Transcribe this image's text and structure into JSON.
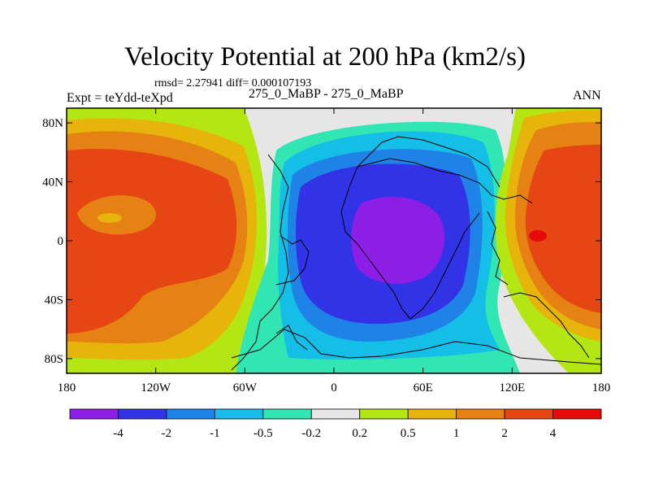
{
  "chart_data": {
    "type": "heatmap",
    "title": "Velocity Potential at 200 hPa (km2/s)",
    "stats": "rmsd= 2.27941 diff= 0.000107193",
    "left_label": "Expt = teYdd-teXpd",
    "center_label": "275_0_MaBP - 275_0_MaBP",
    "right_label": "ANN",
    "xlim": [
      -180,
      180
    ],
    "ylim": [
      -90,
      90
    ],
    "x_ticks": [
      {
        "value": -180,
        "label": "180"
      },
      {
        "value": -120,
        "label": "120W"
      },
      {
        "value": -60,
        "label": "60W"
      },
      {
        "value": 0,
        "label": "0"
      },
      {
        "value": 60,
        "label": "60E"
      },
      {
        "value": 120,
        "label": "120E"
      },
      {
        "value": 180,
        "label": "180"
      }
    ],
    "y_ticks": [
      {
        "value": 80,
        "label": "80N"
      },
      {
        "value": 40,
        "label": "40N"
      },
      {
        "value": 0,
        "label": "0"
      },
      {
        "value": -40,
        "label": "40S"
      },
      {
        "value": -80,
        "label": "80S"
      }
    ],
    "contour_levels": [
      -4,
      -2,
      -1,
      -0.5,
      -0.2,
      0.2,
      0.5,
      1,
      2,
      4
    ],
    "colorbar_labels": [
      "-4",
      "-2",
      "-1",
      "-0.5",
      "-0.2",
      "0.2",
      "0.5",
      "1",
      "2",
      "4"
    ],
    "colors": [
      "#8c1ee6",
      "#3232e6",
      "#1e82e6",
      "#14bee6",
      "#32e6b4",
      "#e6e6e6",
      "#b4e614",
      "#e6b40a",
      "#e68214",
      "#e64614",
      "#e60a0a"
    ],
    "features": [
      {
        "name": "divergence maximum (west)",
        "lon": -150,
        "lat": 15,
        "value": 1.5
      },
      {
        "name": "divergence maximum (east)",
        "lon": 140,
        "lat": 2,
        "value": 4.5
      },
      {
        "name": "convergence minimum",
        "lon": 40,
        "lat": 5,
        "value": -4.5
      }
    ]
  }
}
